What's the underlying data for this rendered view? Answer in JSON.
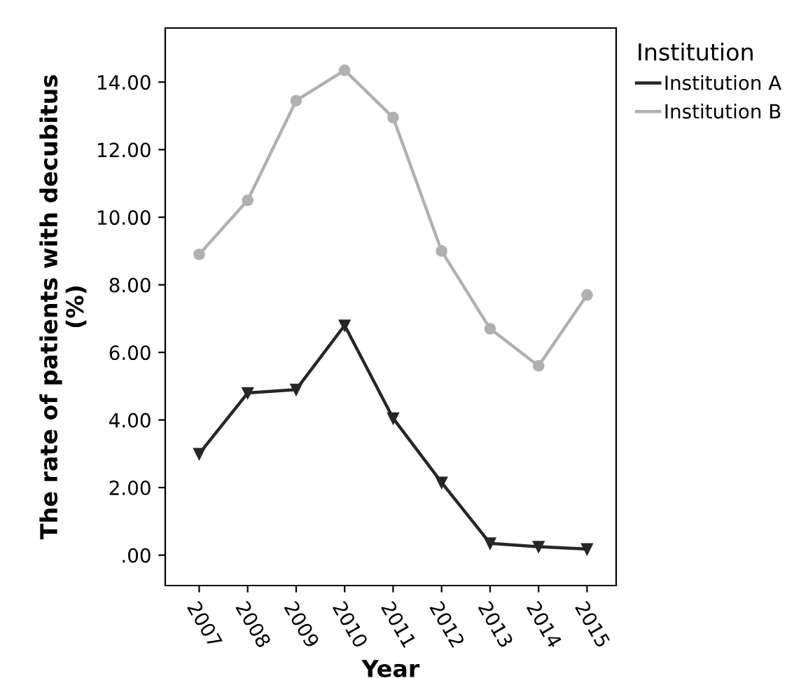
{
  "chart_data": {
    "type": "line",
    "xlabel": "Year",
    "ylabel": "The rate of patients with decubitus\n(%)",
    "legend_title": "Institution",
    "legend": "top right",
    "categories": [
      "2007",
      "2008",
      "2009",
      "2010",
      "2011",
      "2012",
      "2013",
      "2014",
      "2015"
    ],
    "series": [
      {
        "name": "Institution A",
        "color": "#262626",
        "marker": "triangle",
        "values": [
          3.0,
          4.8,
          4.9,
          6.8,
          4.05,
          2.15,
          0.35,
          0.25,
          0.18
        ]
      },
      {
        "name": "Institution B",
        "color": "#b0b0b0",
        "marker": "circle",
        "values": [
          8.9,
          10.5,
          13.45,
          14.35,
          12.95,
          9.0,
          6.7,
          5.6,
          7.7
        ]
      }
    ],
    "ylim": [
      -0.9,
      15.6
    ],
    "yticks": [
      {
        "value": 0,
        "label": ".00"
      },
      {
        "value": 2,
        "label": "2.00"
      },
      {
        "value": 4,
        "label": "4.00"
      },
      {
        "value": 6,
        "label": "6.00"
      },
      {
        "value": 8,
        "label": "8.00"
      },
      {
        "value": 10,
        "label": "10.00"
      },
      {
        "value": 12,
        "label": "12.00"
      },
      {
        "value": 14,
        "label": "14.00"
      }
    ],
    "grid": false,
    "line_style": "solid"
  }
}
